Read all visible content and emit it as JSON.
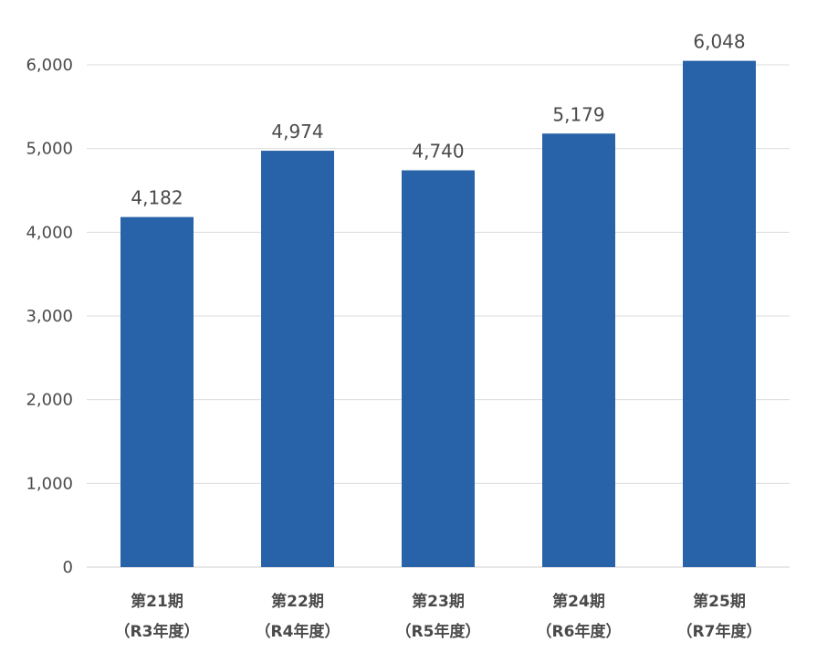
{
  "chart_data": {
    "type": "bar",
    "categories": [
      [
        "第21期",
        "（R3年度）"
      ],
      [
        "第22期",
        "（R4年度）"
      ],
      [
        "第23期",
        "（R5年度）"
      ],
      [
        "第24期",
        "（R6年度）"
      ],
      [
        "第25期",
        "（R7年度）"
      ]
    ],
    "values": [
      4182,
      4974,
      4740,
      5179,
      6048
    ],
    "value_labels": [
      "4,182",
      "4,974",
      "4,740",
      "5,179",
      "6,048"
    ],
    "ylim": [
      0,
      6000
    ],
    "y_ticks": [
      0,
      1000,
      2000,
      3000,
      4000,
      5000,
      6000
    ],
    "y_tick_labels": [
      "0",
      "1,000",
      "2,000",
      "3,000",
      "4,000",
      "5,000",
      "6,000"
    ],
    "grid": true,
    "bar_color": "#2862a8",
    "title": "",
    "xlabel": "",
    "ylabel": ""
  }
}
